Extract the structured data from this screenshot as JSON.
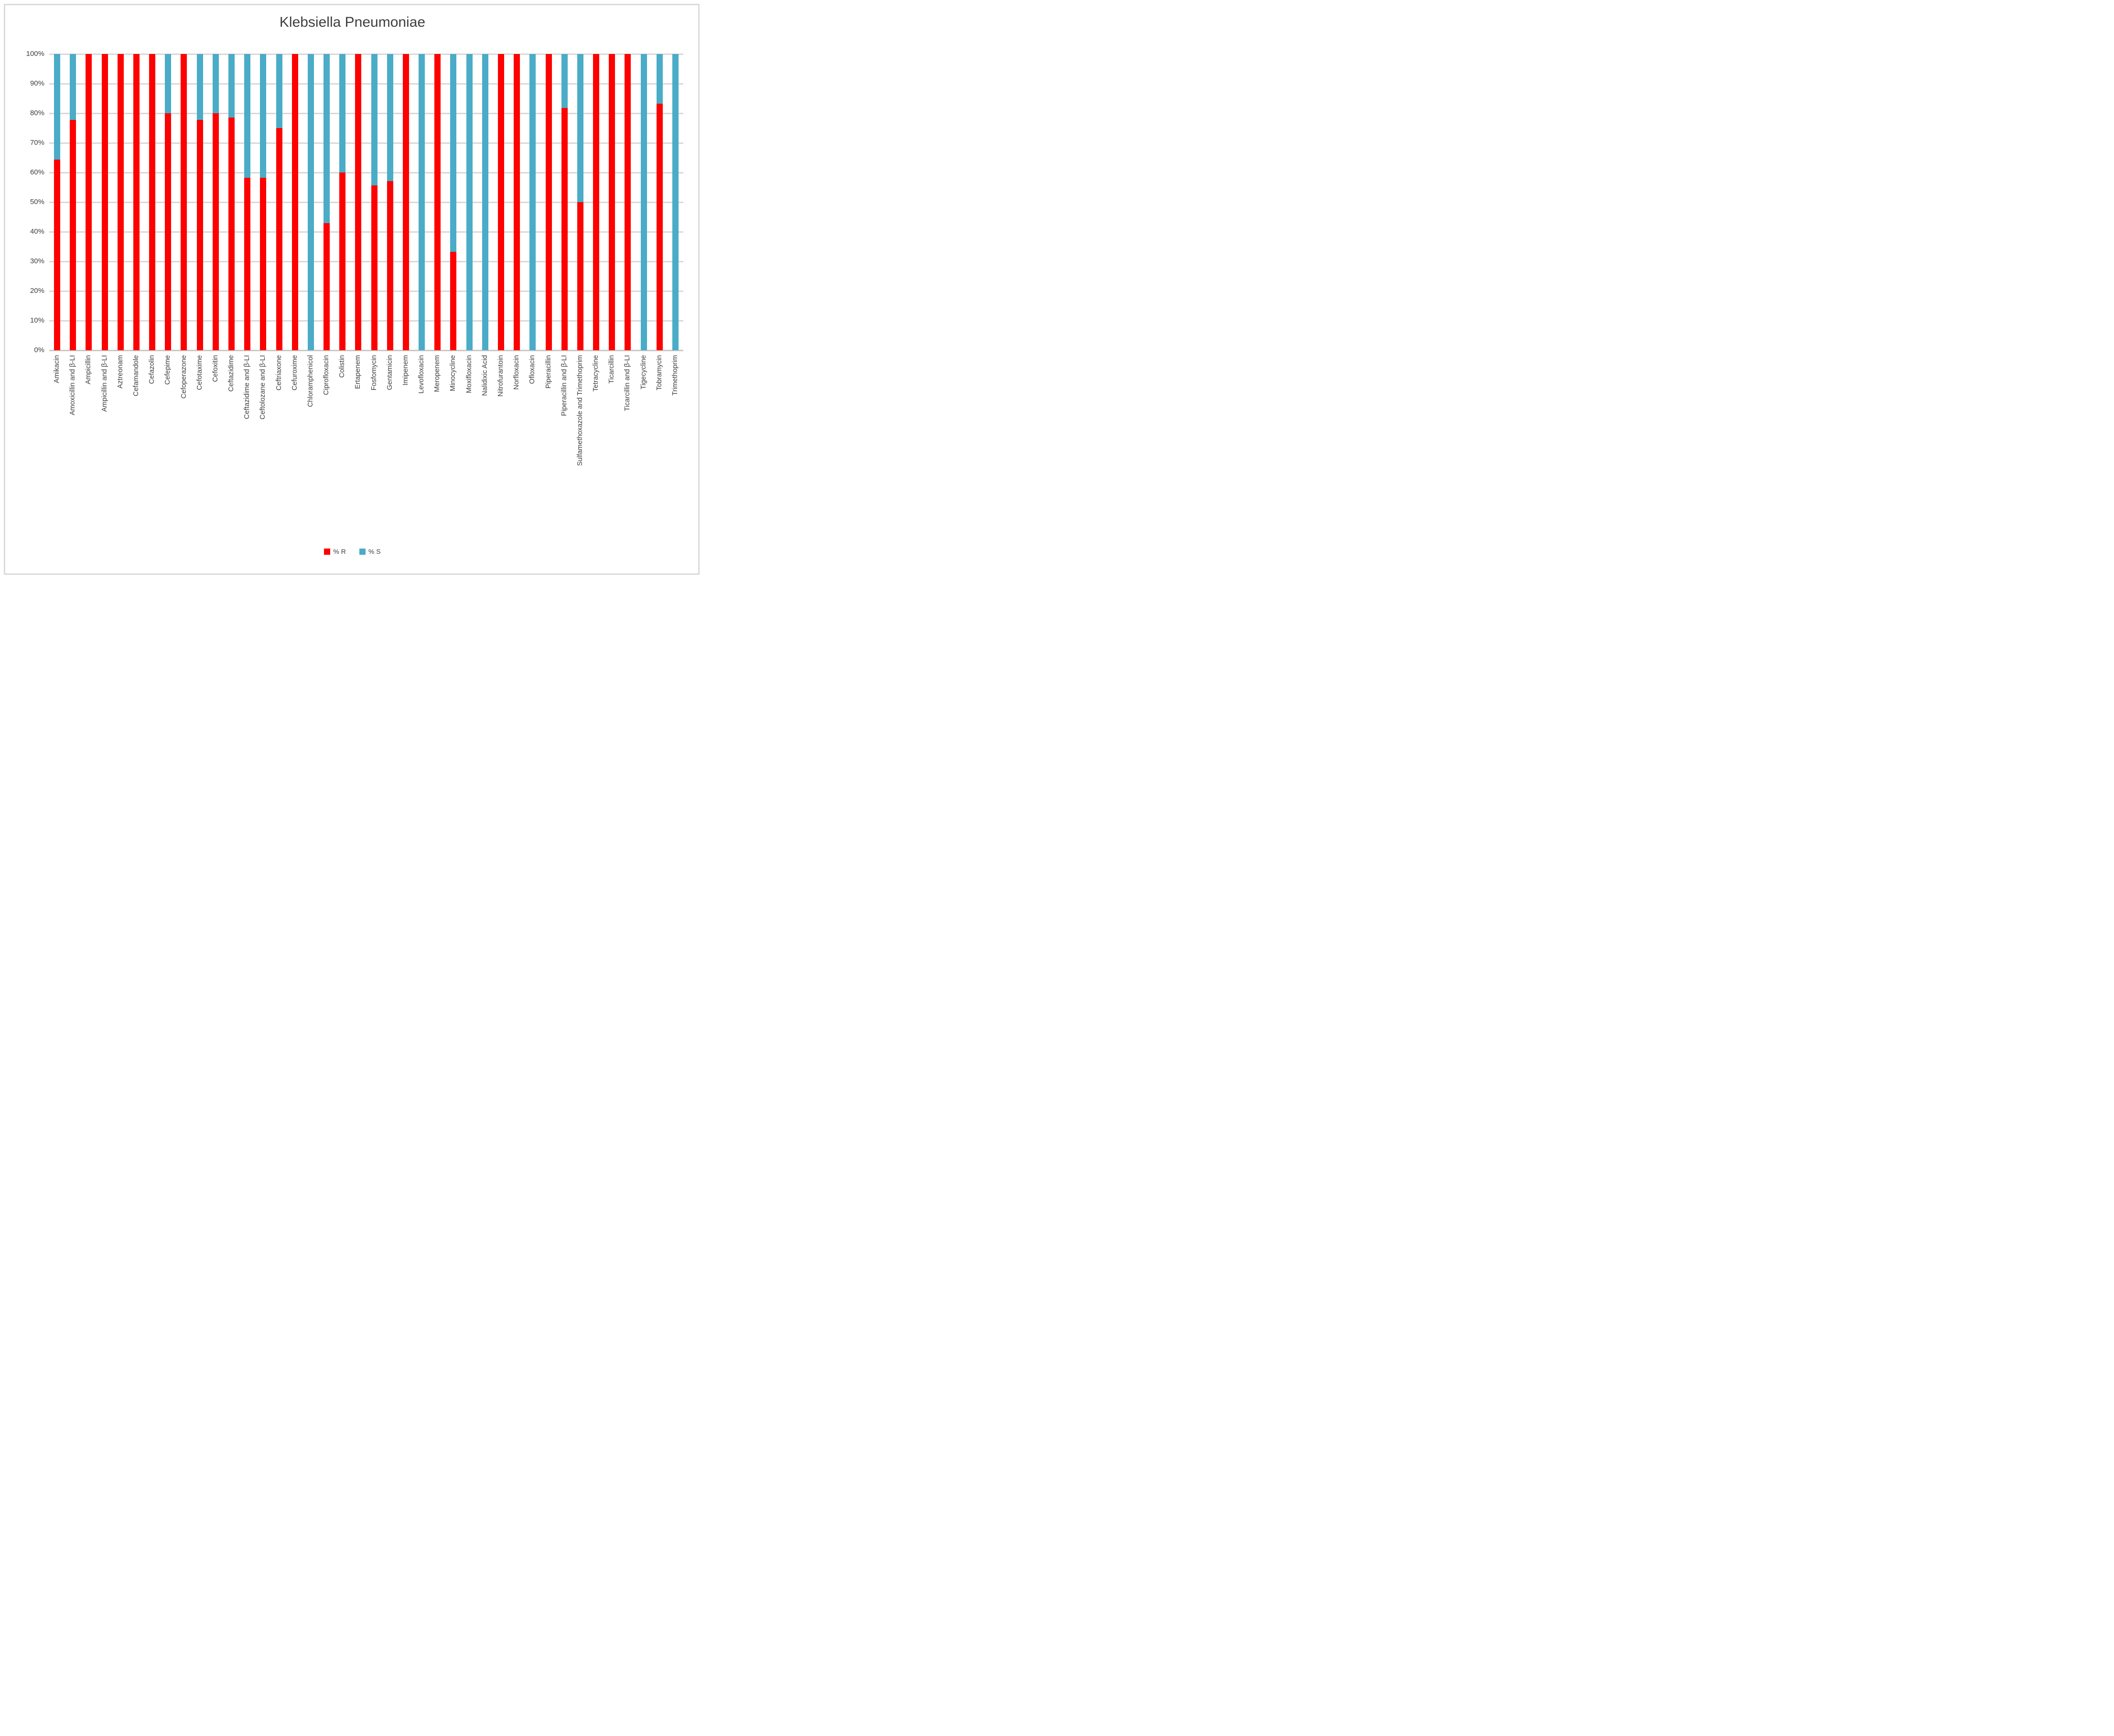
{
  "title": "Klebsiella Pneumoniae",
  "colors": {
    "resistant": "#FF0000",
    "susceptible": "#4AACC6",
    "gridline": "#D9D9D9",
    "axis_line": "#C9C9C9",
    "text": "#3F3F3F",
    "frame_border": "#DBDBDB",
    "background": "#FFFFFF"
  },
  "y_axis": {
    "ticks": [
      "100%",
      "90%",
      "80%",
      "70%",
      "60%",
      "50%",
      "40%",
      "30%",
      "20%",
      "10%",
      "0%"
    ],
    "min": 0,
    "max": 100,
    "step": 10
  },
  "chart_data": {
    "type": "bar",
    "stacked": true,
    "title": "Klebsiella Pneumoniae",
    "xlabel": "",
    "ylabel": "",
    "ylim": [
      0,
      100
    ],
    "grid": true,
    "legend_position": "bottom",
    "categories": [
      "Amikacin",
      "Amoxicillin and β-LI",
      "Ampicillin",
      "Ampicillin and β-LI",
      "Aztreonam",
      "Cefamandole",
      "Cefazolin",
      "Cefepime",
      "Cefoperazone",
      "Cefotaxime",
      "Cefoxitin",
      "Ceftazidime",
      "Ceftazidime and β-LI",
      "Ceftolozane and β-LI",
      "Ceftriaxone",
      "Cefuroxime",
      "Chloramphenicol",
      "Ciprofloxacin",
      "Colistin",
      "Ertapenem",
      "Fosfomycin",
      "Gentamicin",
      "Imipenem",
      "Levofloxacin",
      "Meropenem",
      "Minocycline",
      "Moxifloxacin",
      "Nalidixic Acid",
      "Nitrofurantoin",
      "Norfloxacin",
      "Ofloxacin",
      "Piperacillin",
      "Piperacillin and β-LI",
      "Sulfamethoxazole and Trimethoprim",
      "Tetracycline",
      "Ticarcillin",
      "Ticarcillin and β-LI",
      "Tigecycline",
      "Tobramycin",
      "Trimethoprim"
    ],
    "series": [
      {
        "name": "% R",
        "color": "#FF0000",
        "values": [
          64.3,
          77.8,
          100,
          100,
          100,
          100,
          100,
          80,
          100,
          77.8,
          80,
          78.6,
          58.3,
          58.3,
          75,
          100,
          0,
          42.9,
          60,
          100,
          55.6,
          57.1,
          100,
          0,
          100,
          33.3,
          0,
          0,
          100,
          100,
          0,
          100,
          81.8,
          50,
          100,
          100,
          100,
          0,
          83.3,
          0
        ]
      },
      {
        "name": "% S",
        "color": "#4AACC6",
        "values": [
          35.7,
          22.2,
          0,
          0,
          0,
          0,
          0,
          20,
          0,
          22.2,
          20,
          21.4,
          41.7,
          41.7,
          25,
          0,
          100,
          57.1,
          40,
          0,
          44.4,
          42.9,
          0,
          100,
          0,
          66.7,
          100,
          100,
          0,
          0,
          100,
          0,
          18.2,
          50,
          0,
          0,
          0,
          100,
          16.7,
          100
        ]
      }
    ]
  }
}
